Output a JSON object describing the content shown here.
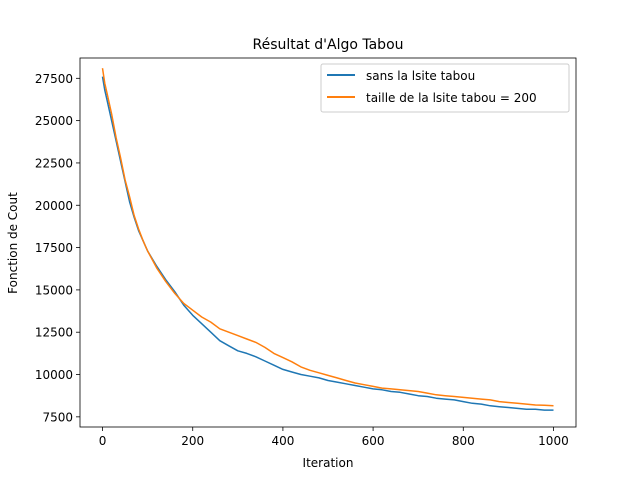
{
  "chart_data": {
    "type": "line",
    "title": "Résultat d'Algo Tabou",
    "xlabel": "Iteration",
    "ylabel": "Fonction de Cout",
    "xlim": [
      -50,
      1050
    ],
    "ylim": [
      6900,
      28700
    ],
    "xticks": [
      0,
      200,
      400,
      600,
      800,
      1000
    ],
    "yticks": [
      7500,
      10000,
      12500,
      15000,
      17500,
      20000,
      22500,
      25000,
      27500
    ],
    "grid": false,
    "legend_position": "top-right",
    "series": [
      {
        "name": "sans la lsite tabou",
        "color": "#1f77b4",
        "x": [
          0,
          5,
          10,
          20,
          30,
          40,
          50,
          60,
          70,
          80,
          90,
          100,
          120,
          140,
          160,
          180,
          200,
          220,
          240,
          260,
          280,
          300,
          320,
          340,
          360,
          380,
          400,
          420,
          440,
          460,
          480,
          500,
          520,
          540,
          560,
          580,
          600,
          620,
          640,
          660,
          680,
          700,
          720,
          740,
          760,
          780,
          800,
          820,
          840,
          860,
          880,
          900,
          920,
          940,
          960,
          980,
          1000
        ],
        "y": [
          27600,
          26800,
          26200,
          25000,
          23800,
          22600,
          21400,
          20200,
          19300,
          18500,
          17900,
          17300,
          16400,
          15600,
          14900,
          14100,
          13500,
          13000,
          12500,
          12000,
          11700,
          11400,
          11250,
          11050,
          10800,
          10550,
          10300,
          10150,
          10000,
          9900,
          9800,
          9650,
          9550,
          9450,
          9350,
          9250,
          9150,
          9100,
          9000,
          8950,
          8850,
          8750,
          8700,
          8600,
          8550,
          8500,
          8400,
          8300,
          8250,
          8150,
          8100,
          8050,
          8000,
          7950,
          7950,
          7900,
          7900
        ]
      },
      {
        "name": "taille de la lsite tabou = 200",
        "color": "#ff7f0e",
        "x": [
          0,
          5,
          10,
          20,
          30,
          40,
          50,
          60,
          70,
          80,
          90,
          100,
          120,
          140,
          160,
          180,
          200,
          220,
          240,
          260,
          280,
          300,
          320,
          340,
          360,
          380,
          400,
          420,
          440,
          460,
          480,
          500,
          520,
          540,
          560,
          580,
          600,
          620,
          640,
          660,
          680,
          700,
          720,
          740,
          760,
          780,
          800,
          820,
          840,
          860,
          880,
          900,
          920,
          940,
          960,
          980,
          1000
        ],
        "y": [
          28100,
          27200,
          26600,
          25400,
          24000,
          22800,
          21500,
          20500,
          19400,
          18600,
          17900,
          17300,
          16300,
          15500,
          14800,
          14200,
          13800,
          13400,
          13100,
          12700,
          12500,
          12300,
          12100,
          11900,
          11600,
          11250,
          11000,
          10750,
          10450,
          10250,
          10100,
          9950,
          9800,
          9650,
          9500,
          9400,
          9300,
          9200,
          9150,
          9100,
          9050,
          9000,
          8900,
          8800,
          8750,
          8700,
          8650,
          8600,
          8550,
          8500,
          8400,
          8350,
          8300,
          8250,
          8200,
          8180,
          8150
        ]
      }
    ]
  }
}
